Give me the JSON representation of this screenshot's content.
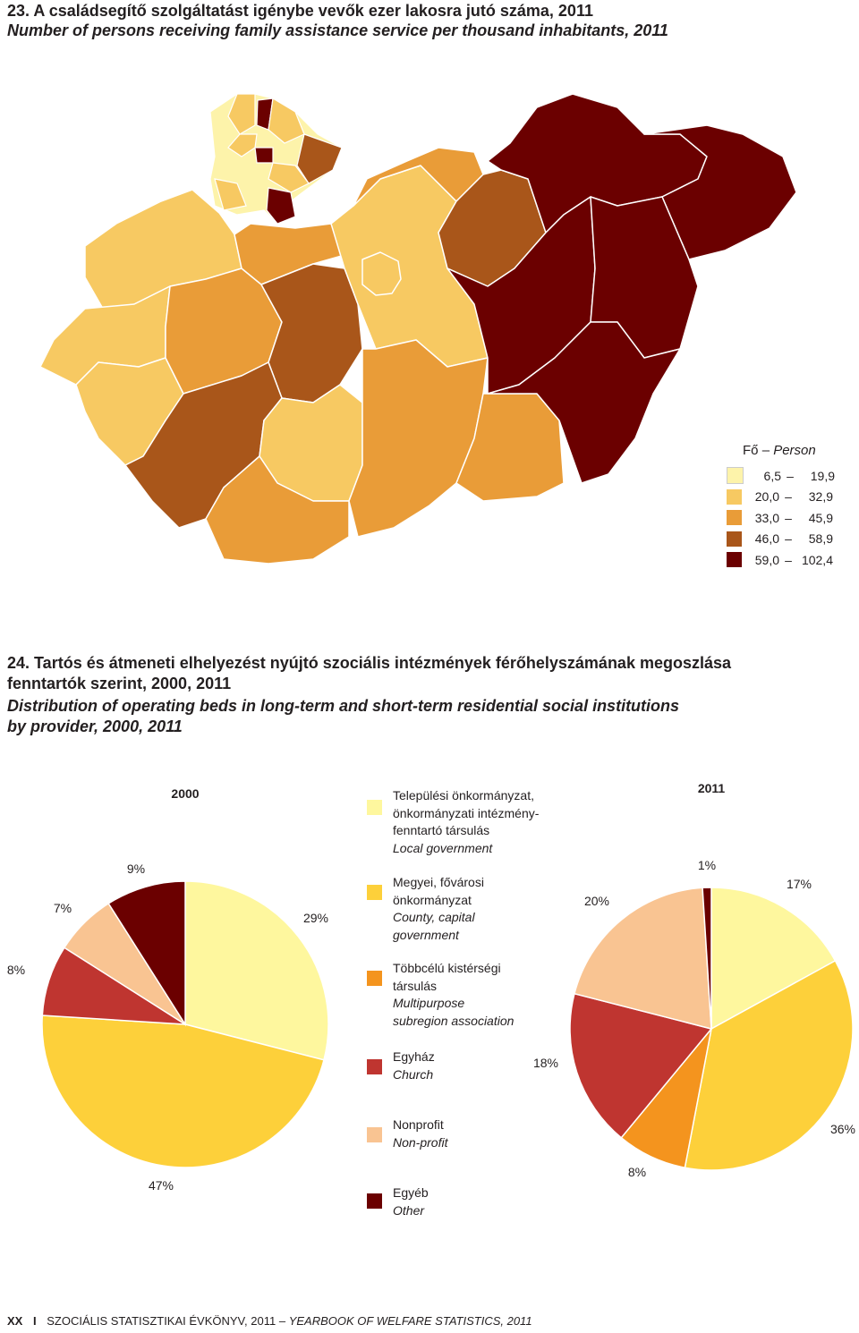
{
  "section23": {
    "title_hu": "23. A családsegítő szolgáltatást igénybe vevők ezer lakosra jutó száma, 2011",
    "title_en": "Number of persons receiving family assistance service per thousand inhabitants, 2011"
  },
  "map_legend": {
    "title_hu": "Fő",
    "title_en": "Person",
    "separator": "–",
    "classes": [
      {
        "low": "6,5",
        "high": "19,9",
        "color": "#fdf3aa"
      },
      {
        "low": "20,0",
        "high": "32,9",
        "color": "#f7c962"
      },
      {
        "low": "33,0",
        "high": "45,9",
        "color": "#e99c38"
      },
      {
        "low": "46,0",
        "high": "58,9",
        "color": "#a9561a"
      },
      {
        "low": "59,0",
        "high": "102,4",
        "color": "#6b0000"
      }
    ]
  },
  "section24": {
    "title_hu_line1": "24. Tartós és átmeneti elhelyezést nyújtó szociális intézmények férőhelyszámának megoszlása",
    "title_hu_line2": "fenntartók szerint, 2000, 2011",
    "title_en_line1": "Distribution of operating beds in long-term and short-term residential social institutions",
    "title_en_line2": "by provider, 2000, 2011"
  },
  "chart_data": [
    {
      "type": "pie",
      "title": "2000",
      "categories": [
        "Local government",
        "County, capital government",
        "Multipurpose subregion association",
        "Church",
        "Non-profit",
        "Other"
      ],
      "values": [
        29,
        47,
        0,
        8,
        7,
        9
      ],
      "labels": [
        "29%",
        "47%",
        "",
        "8%",
        "7%",
        "9%"
      ]
    },
    {
      "type": "pie",
      "title": "2011",
      "categories": [
        "Local government",
        "County, capital government",
        "Multipurpose subregion association",
        "Church",
        "Non-profit",
        "Other"
      ],
      "values": [
        17,
        36,
        8,
        18,
        20,
        1
      ],
      "labels": [
        "17%",
        "36%",
        "8%",
        "18%",
        "20%",
        "1%"
      ]
    }
  ],
  "pie_legend": [
    {
      "hu": [
        "Települési önkormányzat,",
        "önkormányzati intézmény-",
        "fenntartó társulás"
      ],
      "en": [
        "Local government"
      ],
      "color": "#fef79e"
    },
    {
      "hu": [
        "Megyei, fővárosi",
        "önkormányzat"
      ],
      "en": [
        "County, capital",
        "government"
      ],
      "color": "#fdd03a"
    },
    {
      "hu": [
        "Többcélú kistérségi",
        "társulás"
      ],
      "en": [
        "Multipurpose",
        "subregion association"
      ],
      "color": "#f4941e"
    },
    {
      "hu": [
        "Egyház"
      ],
      "en": [
        "Church"
      ],
      "color": "#bf3530"
    },
    {
      "hu": [
        "Nonprofit"
      ],
      "en": [
        "Non-profit"
      ],
      "color": "#f9c492"
    },
    {
      "hu": [
        "Egyéb"
      ],
      "en": [
        "Other"
      ],
      "color": "#6b0000"
    }
  ],
  "footer": {
    "page": "XX",
    "sep": "I",
    "book_hu": "SZOCIÁLIS STATISZTIKAI ÉVKÖNYV, 2011 –",
    "book_en": "YEARBOOK OF WELFARE STATISTICS, 2011"
  }
}
